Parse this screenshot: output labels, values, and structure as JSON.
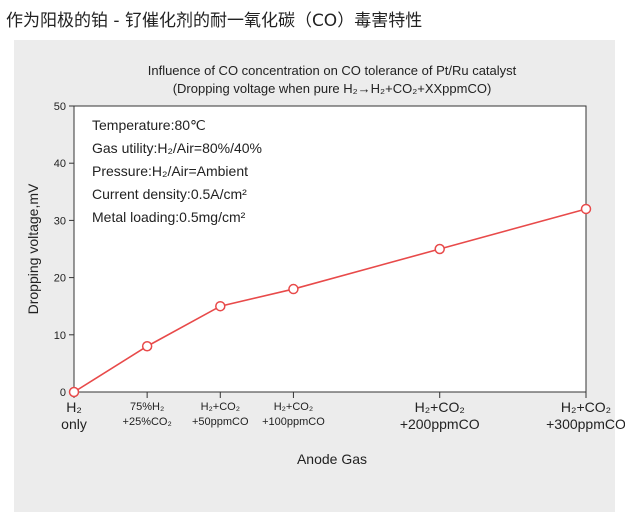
{
  "page": {
    "heading": "作为阳极的铂 - 钌催化剂的耐一氧化碳（CO）毒害特性"
  },
  "chart_data": {
    "type": "line",
    "title": "Influence of CO concentration on CO tolerance of Pt/Ru catalyst",
    "subtitle": "(Dropping voltage when pure H₂→H₂+CO₂+XXppmCO)",
    "xlabel": "Anode Gas",
    "ylabel": "Dropping voltage,mV",
    "ylim": [
      0,
      50
    ],
    "yticks": [
      0,
      10,
      20,
      30,
      40,
      50
    ],
    "categories": [
      {
        "line1": "H₂",
        "line2": "only"
      },
      {
        "line1": "75%H₂",
        "line2": "+25%CO₂"
      },
      {
        "line1": "H₂+CO₂",
        "line2": "+50ppmCO"
      },
      {
        "line1": "H₂+CO₂",
        "line2": "+100ppmCO"
      },
      {
        "line1": "H₂+CO₂",
        "line2": "+200ppmCO"
      },
      {
        "line1": "H₂+CO₂",
        "line2": "+300ppmCO"
      }
    ],
    "x_positions": [
      0,
      1,
      2,
      3,
      5,
      7
    ],
    "x_range": [
      0,
      7
    ],
    "series": [
      {
        "values": [
          0,
          8,
          15,
          18,
          25,
          32
        ],
        "color": "#e84a4a"
      }
    ],
    "annotations": [
      "Temperature:80℃",
      "Gas utility:H₂/Air=80%/40%",
      "Pressure:H₂/Air=Ambient",
      "Current density:0.5A/cm²",
      "Metal loading:0.5mg/cm²"
    ],
    "grid": false,
    "legend": "none"
  }
}
